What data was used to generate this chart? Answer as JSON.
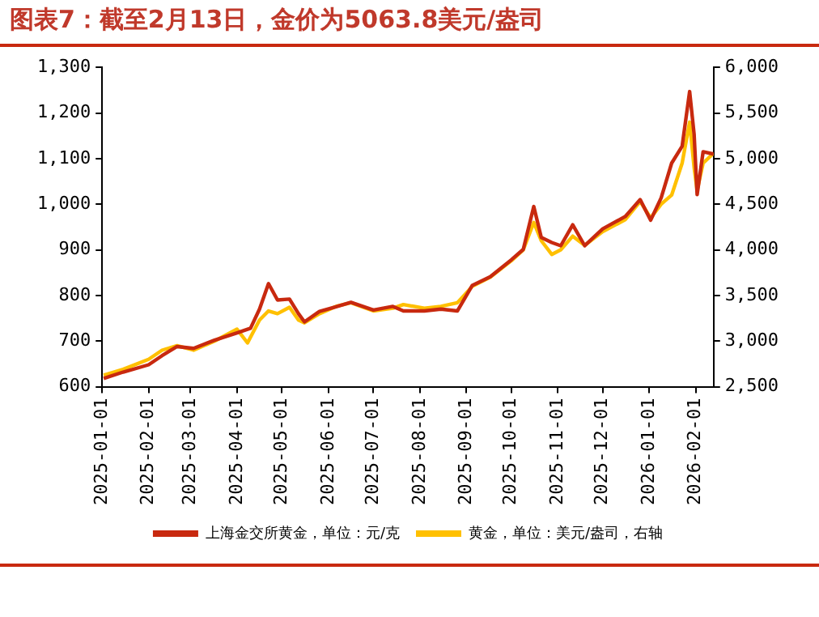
{
  "chart_data": {
    "type": "line",
    "title": "图表7：截至2月13日，金价为5063.8美元/盎司",
    "series": [
      {
        "name": "上海金交所黄金，单位：元/克",
        "color": "#c8290f",
        "axis": "y",
        "x": [
          "2025-01-02",
          "2025-01-15",
          "2025-02-01",
          "2025-02-10",
          "2025-02-20",
          "2025-03-03",
          "2025-03-17",
          "2025-04-01",
          "2025-04-10",
          "2025-04-16",
          "2025-04-22",
          "2025-04-28",
          "2025-05-06",
          "2025-05-12",
          "2025-05-16",
          "2025-05-26",
          "2025-06-06",
          "2025-06-16",
          "2025-07-01",
          "2025-07-14",
          "2025-07-21",
          "2025-08-04",
          "2025-08-15",
          "2025-08-26",
          "2025-09-05",
          "2025-09-17",
          "2025-10-01",
          "2025-10-09",
          "2025-10-16",
          "2025-10-21",
          "2025-10-28",
          "2025-11-03",
          "2025-11-11",
          "2025-11-19",
          "2025-12-01",
          "2025-12-16",
          "2025-12-26",
          "2026-01-02",
          "2026-01-09",
          "2026-01-16",
          "2026-01-23",
          "2026-01-28",
          "2026-01-31",
          "2026-02-02",
          "2026-02-06",
          "2026-02-13"
        ],
        "values": [
          618,
          632,
          648,
          668,
          688,
          684,
          702,
          718,
          728,
          770,
          826,
          790,
          792,
          760,
          742,
          765,
          775,
          785,
          768,
          776,
          766,
          766,
          770,
          766,
          822,
          841,
          878,
          901,
          995,
          927,
          916,
          909,
          955,
          909,
          946,
          973,
          1010,
          965,
          1014,
          1090,
          1127,
          1247,
          1153,
          1021,
          1115,
          1110
        ]
      },
      {
        "name": "黄金，单位：美元/盎司，右轴",
        "color": "#ffc000",
        "axis": "y2",
        "x": [
          "2025-01-02",
          "2025-01-15",
          "2025-02-01",
          "2025-02-10",
          "2025-02-20",
          "2025-03-03",
          "2025-03-17",
          "2025-04-01",
          "2025-04-08",
          "2025-04-16",
          "2025-04-22",
          "2025-04-28",
          "2025-05-06",
          "2025-05-12",
          "2025-05-16",
          "2025-05-26",
          "2025-06-06",
          "2025-06-16",
          "2025-07-01",
          "2025-07-14",
          "2025-07-21",
          "2025-08-04",
          "2025-08-15",
          "2025-08-26",
          "2025-09-05",
          "2025-09-17",
          "2025-10-01",
          "2025-10-09",
          "2025-10-16",
          "2025-10-21",
          "2025-10-28",
          "2025-11-03",
          "2025-11-11",
          "2025-11-19",
          "2025-12-01",
          "2025-12-16",
          "2025-12-26",
          "2026-01-02",
          "2026-01-09",
          "2026-01-16",
          "2026-01-23",
          "2026-01-28",
          "2026-01-31",
          "2026-02-02",
          "2026-02-06",
          "2026-02-13"
        ],
        "values": [
          2625,
          2690,
          2800,
          2900,
          2950,
          2900,
          3000,
          3130,
          2980,
          3230,
          3330,
          3300,
          3370,
          3230,
          3200,
          3300,
          3380,
          3420,
          3330,
          3360,
          3400,
          3360,
          3380,
          3420,
          3600,
          3700,
          3880,
          4000,
          4300,
          4100,
          3950,
          4000,
          4150,
          4050,
          4200,
          4330,
          4530,
          4350,
          4500,
          4600,
          4950,
          5400,
          4900,
          4650,
          4950,
          5060
        ]
      }
    ],
    "xlim": [
      "2025-01-01",
      "2026-02-13"
    ],
    "xticks": [
      "2025-01-01",
      "2025-02-01",
      "2025-03-01",
      "2025-04-01",
      "2025-05-01",
      "2025-06-01",
      "2025-07-01",
      "2025-08-01",
      "2025-09-01",
      "2025-10-01",
      "2025-11-01",
      "2025-12-01",
      "2026-01-01",
      "2026-02-01"
    ],
    "ylim": [
      600,
      1300
    ],
    "yticks": [
      600,
      700,
      800,
      900,
      {
        "value": 1000,
        "label": "1,000"
      },
      {
        "value": 1100,
        "label": "1,100"
      },
      {
        "value": 1200,
        "label": "1,200"
      },
      {
        "value": 1300,
        "label": "1,300"
      }
    ],
    "y2lim": [
      2500,
      6000
    ],
    "y2ticks": [
      {
        "value": 2500,
        "label": "2,500"
      },
      {
        "value": 3000,
        "label": "3,000"
      },
      {
        "value": 3500,
        "label": "3,500"
      },
      {
        "value": 4000,
        "label": "4,000"
      },
      {
        "value": 4500,
        "label": "4,500"
      },
      {
        "value": 5000,
        "label": "5,000"
      },
      {
        "value": 5500,
        "label": "5,500"
      },
      {
        "value": 6000,
        "label": "6,000"
      }
    ],
    "grid": false,
    "legend": "bottom",
    "marker": "none",
    "line_style": "solid"
  }
}
